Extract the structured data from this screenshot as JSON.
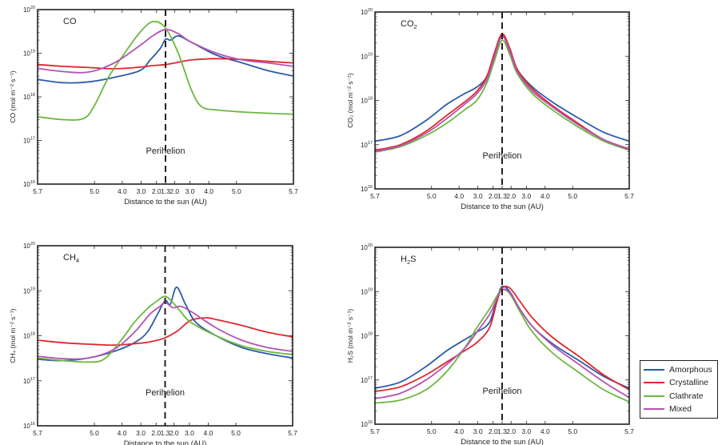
{
  "chart_data": [
    {
      "type": "line",
      "title": "CO",
      "title_sub": "",
      "ylabel": "CO (mol m⁻² s⁻¹)",
      "xlabel": "Distance to the sun (AU)",
      "x_tick_labels": [
        "5.7",
        "5.0",
        "4.0",
        "3.0",
        "2.0",
        "1.3",
        "2.0",
        "3.0",
        "4.0",
        "5.0",
        "5.7"
      ],
      "y_scale": "log",
      "ylim": [
        1e+16,
        1e+20
      ],
      "y_tick_exponents": [
        16,
        17,
        18,
        19,
        20
      ],
      "annotation": "Perihelion",
      "series": [
        {
          "name": "Amorphous",
          "x": [
            0,
            0.1,
            0.2,
            0.3,
            0.4,
            0.44,
            0.48,
            0.5,
            0.52,
            0.55,
            0.6,
            0.7,
            0.8,
            0.9,
            1.0
          ],
          "y": [
            2.5e+18,
            2.1e+18,
            2.2e+18,
            2.8e+18,
            4e+18,
            7e+18,
            1.3e+19,
            2.1e+19,
            2e+19,
            2.5e+19,
            1.8e+19,
            9e+18,
            6e+18,
            4e+18,
            3e+18
          ]
        },
        {
          "name": "Crystalline",
          "x": [
            0,
            0.1,
            0.2,
            0.3,
            0.4,
            0.45,
            0.5,
            0.55,
            0.6,
            0.7,
            0.8,
            0.9,
            1.0
          ],
          "y": [
            5.5e+18,
            5e+18,
            4.7e+18,
            4.4e+18,
            4.8e+18,
            5.2e+18,
            5.5e+18,
            6.2e+18,
            7e+18,
            7.5e+18,
            7.2e+18,
            6.5e+18,
            6e+18
          ]
        },
        {
          "name": "Clathrate",
          "x": [
            0,
            0.1,
            0.18,
            0.22,
            0.28,
            0.34,
            0.4,
            0.45,
            0.5,
            0.55,
            0.6,
            0.64,
            0.7,
            0.8,
            0.9,
            1.0
          ],
          "y": [
            3.5e+17,
            3e+17,
            3.2e+17,
            6e+17,
            3e+18,
            1e+19,
            3e+19,
            5.3e+19,
            3.8e+19,
            1e+19,
            1.5e+18,
            6e+17,
            5e+17,
            4.5e+17,
            4.2e+17,
            4e+17
          ]
        },
        {
          "name": "Mixed",
          "x": [
            0,
            0.1,
            0.2,
            0.3,
            0.4,
            0.45,
            0.5,
            0.55,
            0.6,
            0.7,
            0.8,
            0.9,
            1.0
          ],
          "y": [
            4.5e+18,
            3.8e+18,
            3.7e+18,
            6e+18,
            1.5e+19,
            2.5e+19,
            3.5e+19,
            2.8e+19,
            1.8e+19,
            1e+19,
            7e+18,
            6e+18,
            5e+18
          ]
        }
      ]
    },
    {
      "type": "line",
      "title": "CO",
      "title_sub": "2",
      "ylabel": "CO₂ (mol m⁻² s⁻¹)",
      "xlabel": "Distance to the sun (AU)",
      "x_tick_labels": [
        "5.7",
        "5.0",
        "4.0",
        "3.0",
        "2.0",
        "1.3",
        "2.0",
        "3.0",
        "4.0",
        "5.0",
        "5.7"
      ],
      "y_scale": "log",
      "ylim": [
        1e+16,
        1e+20
      ],
      "y_tick_exponents": [
        16,
        17,
        18,
        19,
        20
      ],
      "annotation": "Perihelion",
      "series": [
        {
          "name": "Amorphous",
          "x": [
            0,
            0.1,
            0.2,
            0.28,
            0.35,
            0.4,
            0.44,
            0.47,
            0.5,
            0.53,
            0.56,
            0.62,
            0.7,
            0.8,
            0.9,
            1.0
          ],
          "y": [
            1.2e+17,
            1.6e+17,
            3.5e+17,
            8e+17,
            1.4e+18,
            2e+18,
            3.5e+18,
            1.2e+19,
            3e+19,
            1.5e+19,
            5e+18,
            2e+18,
            9e+17,
            4e+17,
            1.9e+17,
            1.2e+17
          ]
        },
        {
          "name": "Crystalline",
          "x": [
            0,
            0.1,
            0.2,
            0.28,
            0.35,
            0.4,
            0.44,
            0.47,
            0.5,
            0.53,
            0.56,
            0.62,
            0.7,
            0.8,
            0.9,
            1.0
          ],
          "y": [
            7.5e+16,
            1e+17,
            2e+17,
            4.5e+17,
            9e+17,
            1.6e+18,
            3.5e+18,
            1.2e+19,
            3.2e+19,
            1.5e+19,
            5e+18,
            1.8e+18,
            7.5e+17,
            3e+17,
            1.3e+17,
            8e+16
          ]
        },
        {
          "name": "Clathrate",
          "x": [
            0,
            0.1,
            0.2,
            0.28,
            0.35,
            0.4,
            0.44,
            0.47,
            0.5,
            0.53,
            0.56,
            0.62,
            0.7,
            0.8,
            0.9,
            1.0
          ],
          "y": [
            6.8e+16,
            9e+16,
            1.6e+17,
            3e+17,
            6e+17,
            1e+18,
            2.5e+18,
            8e+18,
            2.3e+19,
            1.1e+19,
            4e+18,
            1.4e+18,
            6e+17,
            2.5e+17,
            1.2e+17,
            7.5e+16
          ]
        },
        {
          "name": "Mixed",
          "x": [
            0,
            0.1,
            0.2,
            0.28,
            0.35,
            0.4,
            0.44,
            0.47,
            0.5,
            0.53,
            0.56,
            0.62,
            0.7,
            0.8,
            0.9,
            1.0
          ],
          "y": [
            7e+16,
            9.5e+16,
            1.8e+17,
            3.8e+17,
            8e+17,
            1.4e+18,
            3e+18,
            1e+19,
            2.8e+19,
            1.3e+19,
            4.5e+18,
            1.6e+18,
            7e+17,
            2.8e+17,
            1.3e+17,
            7.8e+16
          ]
        }
      ]
    },
    {
      "type": "line",
      "title": "CH",
      "title_sub": "4",
      "ylabel": "CH₄ (mol m⁻² s⁻¹)",
      "xlabel": "Distance to the sun (AU)",
      "x_tick_labels": [
        "5.7",
        "5.0",
        "4.0",
        "3.0",
        "2.0",
        "1.3",
        "2.0",
        "3.0",
        "4.0",
        "5.0",
        "5.7"
      ],
      "y_scale": "log",
      "ylim": [
        1e+16,
        1e+20
      ],
      "y_tick_exponents": [
        16,
        17,
        18,
        19,
        20
      ],
      "annotation": "Perihelion",
      "series": [
        {
          "name": "Amorphous",
          "x": [
            0,
            0.1,
            0.2,
            0.3,
            0.38,
            0.43,
            0.47,
            0.5,
            0.52,
            0.545,
            0.58,
            0.62,
            0.7,
            0.8,
            0.9,
            1.0
          ],
          "y": [
            3e+17,
            2.8e+17,
            3.2e+17,
            4.5e+17,
            7e+17,
            1.2e+18,
            3e+18,
            6e+18,
            5e+18,
            1.2e+19,
            5e+18,
            2e+18,
            1e+18,
            5.5e+17,
            4e+17,
            3.2e+17
          ]
        },
        {
          "name": "Crystalline",
          "x": [
            0,
            0.1,
            0.2,
            0.3,
            0.4,
            0.45,
            0.5,
            0.55,
            0.6,
            0.66,
            0.7,
            0.8,
            0.9,
            1.0
          ],
          "y": [
            8e+17,
            7e+17,
            6.5e+17,
            6.2e+17,
            6.8e+17,
            7.5e+17,
            9e+17,
            1.3e+18,
            2.2e+18,
            2.5e+18,
            2.3e+18,
            1.7e+18,
            1.2e+18,
            9.5e+17
          ]
        },
        {
          "name": "Clathrate",
          "x": [
            0,
            0.1,
            0.2,
            0.26,
            0.32,
            0.38,
            0.43,
            0.47,
            0.5,
            0.53,
            0.56,
            0.6,
            0.7,
            0.8,
            0.9,
            1.0
          ],
          "y": [
            3.2e+17,
            2.8e+17,
            2.6e+17,
            3e+17,
            7e+17,
            2e+18,
            4e+18,
            6e+18,
            7.5e+18,
            5.5e+18,
            3.5e+18,
            2e+18,
            1e+18,
            6e+17,
            4.5e+17,
            3.8e+17
          ]
        },
        {
          "name": "Mixed",
          "x": [
            0,
            0.1,
            0.2,
            0.3,
            0.38,
            0.44,
            0.48,
            0.5,
            0.53,
            0.56,
            0.6,
            0.7,
            0.8,
            0.9,
            1.0
          ],
          "y": [
            3.5e+17,
            3.1e+17,
            3.2e+17,
            5e+17,
            1.2e+18,
            3e+18,
            4.5e+18,
            5.5e+18,
            4.2e+18,
            4.5e+18,
            3.5e+18,
            1.5e+18,
            8e+17,
            5.5e+17,
            4.5e+17
          ]
        }
      ]
    },
    {
      "type": "line",
      "title": "H",
      "title_sub": "2",
      "title_after": "S",
      "ylabel": "H₂S (mol m⁻² s⁻¹)",
      "xlabel": "Distance to the sun (AU)",
      "x_tick_labels": [
        "5.7",
        "5.0",
        "4.0",
        "3.0",
        "2.0",
        "1.3",
        "2.0",
        "3.0",
        "4.0",
        "5.0",
        "5.7"
      ],
      "y_scale": "log",
      "ylim": [
        1e+16,
        1e+20
      ],
      "y_tick_exponents": [
        16,
        17,
        18,
        19,
        20
      ],
      "annotation": "Perihelion",
      "series": [
        {
          "name": "Amorphous",
          "x": [
            0,
            0.1,
            0.2,
            0.28,
            0.35,
            0.4,
            0.45,
            0.48,
            0.5,
            0.53,
            0.57,
            0.62,
            0.7,
            0.8,
            0.9,
            1.0
          ],
          "y": [
            6.5e+16,
            9e+16,
            2e+17,
            4.5e+17,
            8e+17,
            1.2e+18,
            2e+18,
            7e+18,
            1.3e+19,
            1e+19,
            4e+18,
            1.6e+18,
            6.5e+17,
            2.8e+17,
            1.2e+17,
            6.5e+16
          ]
        },
        {
          "name": "Crystalline",
          "x": [
            0,
            0.1,
            0.2,
            0.28,
            0.35,
            0.4,
            0.45,
            0.48,
            0.5,
            0.53,
            0.57,
            0.62,
            0.7,
            0.8,
            0.9,
            1.0
          ],
          "y": [
            5.5e+16,
            7e+16,
            1.3e+17,
            2.5e+17,
            4.5e+17,
            7e+17,
            1.5e+18,
            6e+18,
            1.2e+19,
            1.2e+19,
            6e+18,
            2.5e+18,
            9e+17,
            3.5e+17,
            1.3e+17,
            6e+16
          ]
        },
        {
          "name": "Clathrate",
          "x": [
            0,
            0.1,
            0.2,
            0.28,
            0.35,
            0.4,
            0.45,
            0.48,
            0.5,
            0.53,
            0.57,
            0.62,
            0.7,
            0.8,
            0.9,
            1.0
          ],
          "y": [
            3e+16,
            3.5e+16,
            6e+16,
            1.5e+17,
            5e+17,
            1.5e+18,
            4e+18,
            8e+18,
            1.1e+19,
            9e+18,
            3.5e+18,
            1.2e+18,
            4e+17,
            1.5e+17,
            6e+16,
            3.2e+16
          ]
        },
        {
          "name": "Mixed",
          "x": [
            0,
            0.1,
            0.2,
            0.28,
            0.35,
            0.4,
            0.45,
            0.48,
            0.5,
            0.53,
            0.57,
            0.62,
            0.7,
            0.8,
            0.9,
            1.0
          ],
          "y": [
            3.8e+16,
            5e+16,
            1e+17,
            2.2e+17,
            5e+17,
            1.2e+18,
            3e+18,
            7e+18,
            1.1e+19,
            9.5e+18,
            4e+18,
            1.6e+18,
            6e+17,
            2.3e+17,
            9e+16,
            4e+16
          ]
        }
      ]
    }
  ],
  "legend": {
    "placement": "bottom-right",
    "items": [
      {
        "label": "Amorphous",
        "color": "#2b5ba8"
      },
      {
        "label": "Crystalline",
        "color": "#e2262b"
      },
      {
        "label": "Clathrate",
        "color": "#6bb83f"
      },
      {
        "label": "Mixed",
        "color": "#b553b3"
      }
    ]
  }
}
